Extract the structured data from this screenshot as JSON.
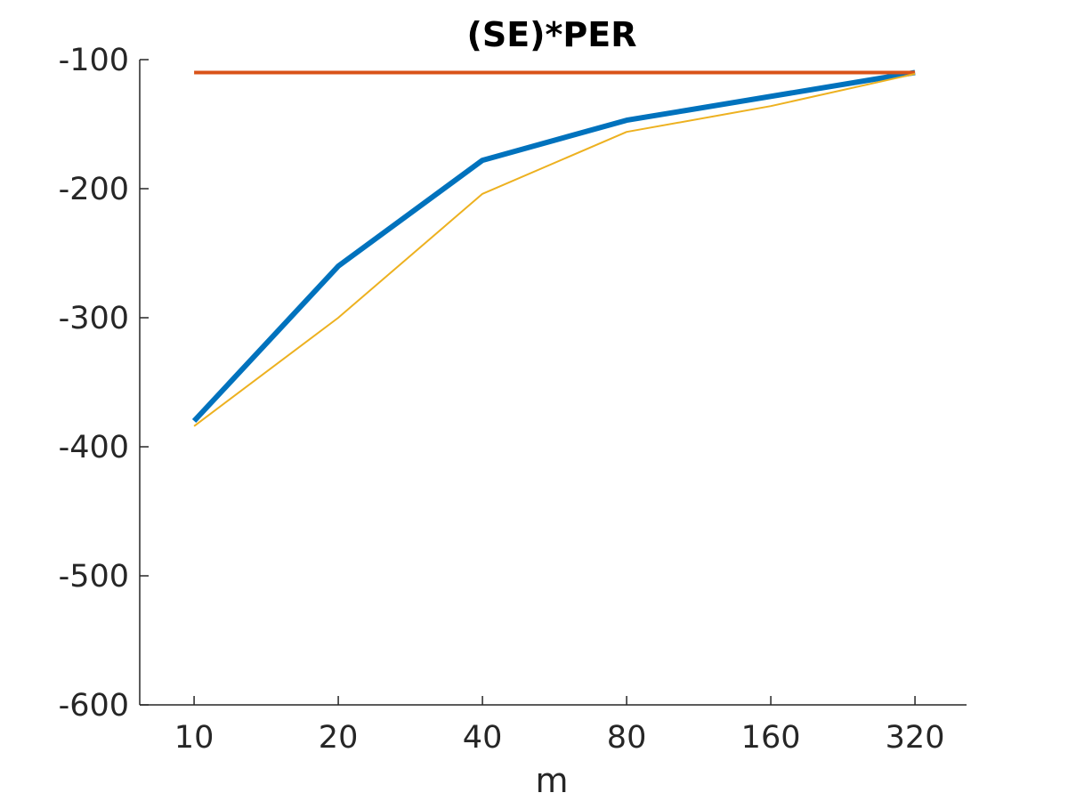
{
  "chart_data": {
    "type": "line",
    "title": "(SE)*PER",
    "xlabel": "m",
    "ylabel": "",
    "x_scale": "log2",
    "x": [
      10,
      20,
      40,
      80,
      160,
      320
    ],
    "x_tick_labels": [
      "10",
      "20",
      "40",
      "80",
      "160",
      "320"
    ],
    "xlim": [
      7.7,
      410
    ],
    "ylim": [
      -600,
      -100
    ],
    "y_ticks": [
      -100,
      -200,
      -300,
      -400,
      -500,
      -600
    ],
    "y_tick_labels": [
      "-100",
      "-200",
      "-300",
      "-400",
      "-500",
      "-600"
    ],
    "grid": false,
    "legend": "none",
    "series": [
      {
        "color": "#0072BD",
        "width": 6,
        "points": [
          [
            10,
            -380
          ],
          [
            20,
            -260
          ],
          [
            40,
            -178
          ],
          [
            80,
            -147
          ],
          [
            320,
            -110
          ]
        ]
      },
      {
        "color": "#D95319",
        "width": 4,
        "points": [
          [
            10,
            -110
          ],
          [
            320,
            -110
          ]
        ]
      },
      {
        "color": "#EDB120",
        "width": 2,
        "points": [
          [
            10,
            -384
          ],
          [
            20,
            -300
          ],
          [
            40,
            -204
          ],
          [
            80,
            -156
          ],
          [
            160,
            -136
          ],
          [
            320,
            -111
          ]
        ]
      }
    ]
  }
}
